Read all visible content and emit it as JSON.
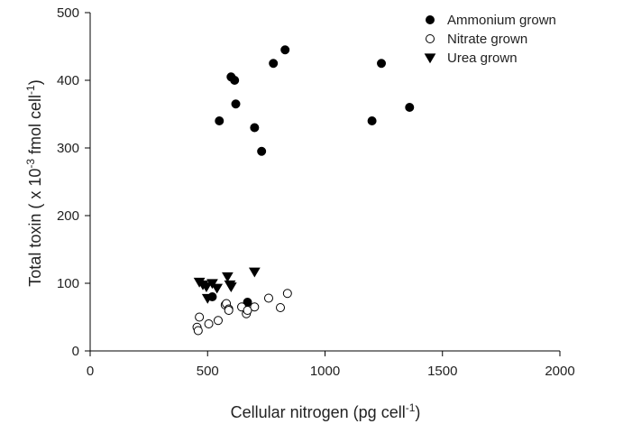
{
  "chart_data": {
    "type": "scatter",
    "xlim": [
      0,
      2000
    ],
    "ylim": [
      0,
      500
    ],
    "xticks": [
      0,
      500,
      1000,
      1500,
      2000
    ],
    "yticks": [
      0,
      100,
      200,
      300,
      400,
      500
    ],
    "grid": false,
    "legend_position": "top-right",
    "xlabel": {
      "text": "Cellular nitrogen (pg cell",
      "sup": "-1",
      "suffix": ")"
    },
    "ylabel": {
      "prefix": "Total toxin ( x 10",
      "sup1": "-3",
      "middle": " fmol cell",
      "sup2": "-1",
      "suffix": ")"
    },
    "series": [
      {
        "name": "Ammonium grown",
        "marker": "filled-circle",
        "color": "#000000",
        "points": [
          [
            550,
            340
          ],
          [
            600,
            405
          ],
          [
            615,
            400
          ],
          [
            620,
            365
          ],
          [
            700,
            330
          ],
          [
            730,
            295
          ],
          [
            780,
            425
          ],
          [
            830,
            445
          ],
          [
            1200,
            340
          ],
          [
            1240,
            425
          ],
          [
            1360,
            360
          ],
          [
            520,
            80
          ],
          [
            670,
            72
          ]
        ]
      },
      {
        "name": "Nitrate grown",
        "marker": "open-circle",
        "color": "#000000",
        "points": [
          [
            455,
            35
          ],
          [
            460,
            30
          ],
          [
            465,
            50
          ],
          [
            505,
            40
          ],
          [
            545,
            45
          ],
          [
            575,
            68
          ],
          [
            580,
            70
          ],
          [
            590,
            62
          ],
          [
            590,
            60
          ],
          [
            645,
            65
          ],
          [
            665,
            55
          ],
          [
            670,
            60
          ],
          [
            700,
            65
          ],
          [
            760,
            78
          ],
          [
            810,
            64
          ],
          [
            840,
            85
          ]
        ]
      },
      {
        "name": "Urea grown",
        "marker": "down-triangle",
        "color": "#000000",
        "points": [
          [
            465,
            102
          ],
          [
            480,
            98
          ],
          [
            495,
            95
          ],
          [
            500,
            78
          ],
          [
            520,
            100
          ],
          [
            540,
            93
          ],
          [
            585,
            110
          ],
          [
            595,
            98
          ],
          [
            600,
            95
          ],
          [
            700,
            117
          ]
        ]
      }
    ]
  }
}
